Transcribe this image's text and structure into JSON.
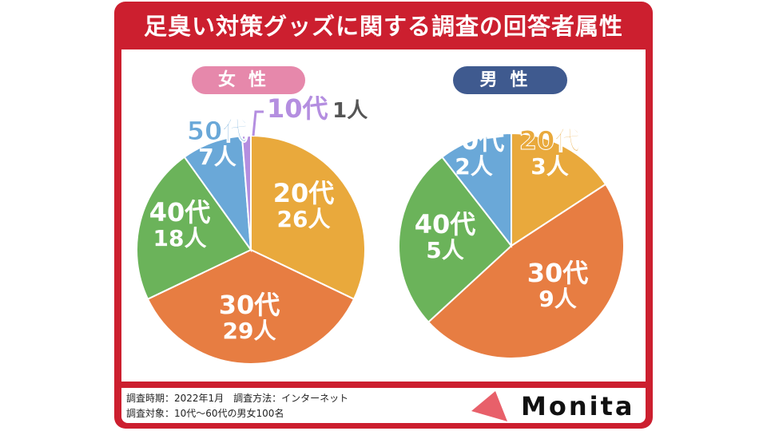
{
  "title": "足臭い対策グッズに関する調査の回答者属性",
  "colors": {
    "brand": "#cc1f2f",
    "female": "#e688ab",
    "male": "#3f5a8f",
    "10代": "#b48ee0",
    "20代": "#e9a93c",
    "30代": "#e77d42",
    "40代": "#6bb35a",
    "50代": "#6aa8d8"
  },
  "chart_data": [
    {
      "type": "pie",
      "title": "女性",
      "categories": [
        "20代",
        "30代",
        "40代",
        "50代",
        "10代"
      ],
      "values": [
        26,
        29,
        18,
        7,
        1
      ],
      "value_labels": [
        "26人",
        "29人",
        "18人",
        "7人",
        "1人"
      ],
      "unit": "人"
    },
    {
      "type": "pie",
      "title": "男性",
      "categories": [
        "20代",
        "30代",
        "40代",
        "50代"
      ],
      "values": [
        3,
        9,
        5,
        2
      ],
      "value_labels": [
        "3人",
        "9人",
        "5人",
        "2人"
      ],
      "unit": "人"
    }
  ],
  "footer": {
    "line1": "調査時期：2022年1月　調査方法：インターネット",
    "line2": "調査対象：10代〜60代の男女100名",
    "logo": "Monita"
  }
}
